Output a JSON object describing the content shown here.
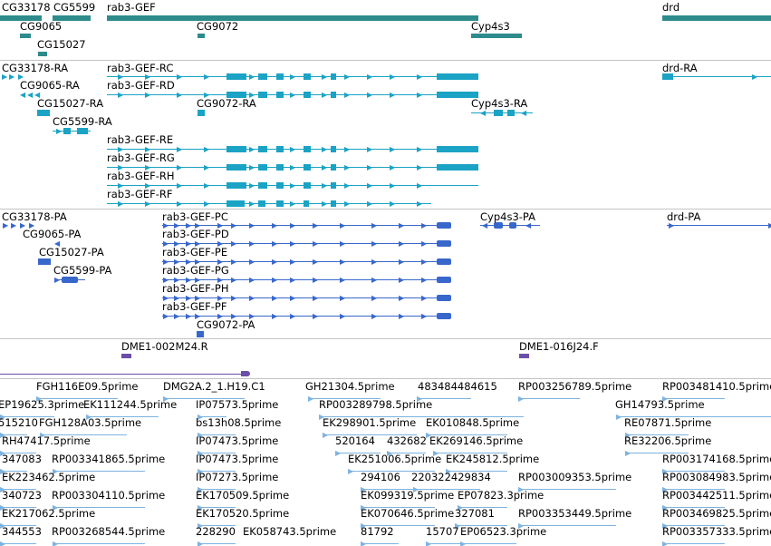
{
  "colors": {
    "gene": "#2e8b8b",
    "transcript": "#1aa3c4",
    "protein": "#3867cc",
    "clone": "#6a4fa8",
    "est": "#7db3e0"
  },
  "tracks": {
    "genes": [
      {
        "label": "CG33178"
      },
      {
        "label": "CG5599"
      },
      {
        "label": "rab3-GEF"
      },
      {
        "label": "drd"
      },
      {
        "label": "CG9065"
      },
      {
        "label": "CG9072"
      },
      {
        "label": "Cyp4s3"
      },
      {
        "label": "CG15027"
      }
    ],
    "transcripts": [
      {
        "label": "CG33178-RA"
      },
      {
        "label": "rab3-GEF-RC"
      },
      {
        "label": "drd-RA"
      },
      {
        "label": "CG9065-RA"
      },
      {
        "label": "rab3-GEF-RD"
      },
      {
        "label": "CG15027-RA"
      },
      {
        "label": "CG9072-RA"
      },
      {
        "label": "Cyp4s3-RA"
      },
      {
        "label": "CG5599-RA"
      },
      {
        "label": "rab3-GEF-RE"
      },
      {
        "label": "rab3-GEF-RG"
      },
      {
        "label": "rab3-GEF-RH"
      },
      {
        "label": "rab3-GEF-RF"
      }
    ],
    "proteins": [
      {
        "label": "CG33178-PA"
      },
      {
        "label": "rab3-GEF-PC"
      },
      {
        "label": "Cyp4s3-PA"
      },
      {
        "label": "drd-PA"
      },
      {
        "label": "CG9065-PA"
      },
      {
        "label": "rab3-GEF-PD"
      },
      {
        "label": "CG15027-PA"
      },
      {
        "label": "rab3-GEF-PE"
      },
      {
        "label": "CG5599-PA"
      },
      {
        "label": "rab3-GEF-PG"
      },
      {
        "label": "rab3-GEF-PH"
      },
      {
        "label": "rab3-GEF-PF"
      },
      {
        "label": "CG9072-PA"
      }
    ],
    "clones": [
      {
        "label": "DME1-002M24.R"
      },
      {
        "label": "DME1-016J24.F"
      }
    ],
    "ests": [
      {
        "label": "FGH116E09.5prime"
      },
      {
        "label": "DMG2A.2_1.H19.C1"
      },
      {
        "label": "GH21304.5prime"
      },
      {
        "label": "483484484615"
      },
      {
        "label": "RP003256789.5prime"
      },
      {
        "label": "RP003481410.5prime"
      },
      {
        "label": "EP19625.3prime"
      },
      {
        "label": "EK111244.5prime"
      },
      {
        "label": "IP07573.5prime"
      },
      {
        "label": "RP003289798.5prime"
      },
      {
        "label": "GH14793.5prime"
      },
      {
        "label": "515210"
      },
      {
        "label": "FGH128A03.5prime"
      },
      {
        "label": "bs13h08.5prime"
      },
      {
        "label": "EK298901.5prime"
      },
      {
        "label": "EK010848.5prime"
      },
      {
        "label": "RE07871.5prime"
      },
      {
        "label": "RH47417.5prime"
      },
      {
        "label": "IP07473.5prime"
      },
      {
        "label": "520164"
      },
      {
        "label": "432682"
      },
      {
        "label": "EK269146.5prime"
      },
      {
        "label": "RE32206.5prime"
      },
      {
        "label": "347083"
      },
      {
        "label": "RP003341865.5prime"
      },
      {
        "label": "IP07473.5prime"
      },
      {
        "label": "EK251006.5prime"
      },
      {
        "label": "EK245812.5prime"
      },
      {
        "label": "RP003174168.5prime"
      },
      {
        "label": "EK223462.5prime"
      },
      {
        "label": "IP07273.5prime"
      },
      {
        "label": "294106"
      },
      {
        "label": "220322429834"
      },
      {
        "label": "RP003009353.5prime"
      },
      {
        "label": "RP003084983.5prime"
      },
      {
        "label": "340723"
      },
      {
        "label": "RP003304110.5prime"
      },
      {
        "label": "EK170509.5prime"
      },
      {
        "label": "EK099319.5prime"
      },
      {
        "label": "EP07823.3prime"
      },
      {
        "label": "RP003442511.5prime"
      },
      {
        "label": "EK217062.5prime"
      },
      {
        "label": "EK170520.5prime"
      },
      {
        "label": "EK070646.5prime"
      },
      {
        "label": "327081"
      },
      {
        "label": "RP003353449.5prime"
      },
      {
        "label": "RP003469825.5prime"
      },
      {
        "label": "344553"
      },
      {
        "label": "RP003268544.5prime"
      },
      {
        "label": "228290"
      },
      {
        "label": "EK058743.5prime"
      },
      {
        "label": "81792"
      },
      {
        "label": "15707"
      },
      {
        "label": "EP06523.3prime"
      },
      {
        "label": "RP003357333.5prime"
      }
    ]
  }
}
